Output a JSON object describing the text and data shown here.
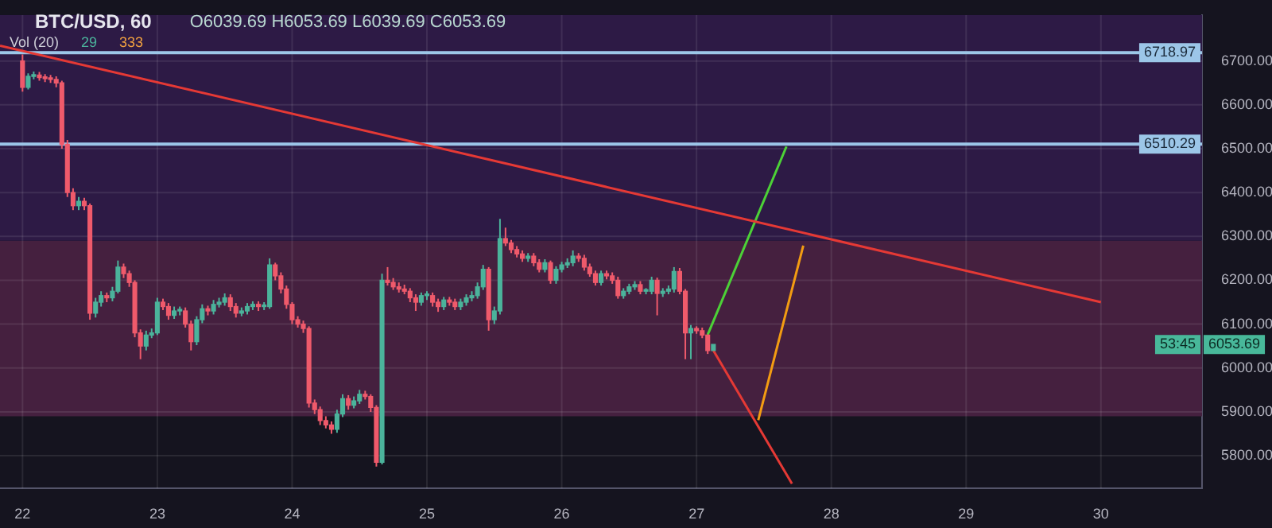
{
  "chart_data": {
    "type": "candlestick",
    "title": "BTC/USD, 60",
    "x": [
      22,
      22.042,
      22.083,
      22.125,
      22.167,
      22.208,
      22.25,
      22.292,
      22.333,
      22.375,
      22.417,
      22.458,
      22.5,
      22.542,
      22.583,
      22.625,
      22.667,
      22.708,
      22.75,
      22.792,
      22.833,
      22.875,
      22.917,
      22.958,
      23,
      23.042,
      23.083,
      23.125,
      23.167,
      23.208,
      23.25,
      23.292,
      23.333,
      23.375,
      23.417,
      23.458,
      23.5,
      23.542,
      23.583,
      23.625,
      23.667,
      23.708,
      23.75,
      23.792,
      23.833,
      23.875,
      23.917,
      23.958,
      24,
      24.042,
      24.083,
      24.125,
      24.167,
      24.208,
      24.25,
      24.292,
      24.333,
      24.375,
      24.417,
      24.458,
      24.5,
      24.542,
      24.583,
      24.625,
      24.667,
      24.708,
      24.75,
      24.792,
      24.833,
      24.875,
      24.917,
      24.958,
      25,
      25.042,
      25.083,
      25.125,
      25.167,
      25.208,
      25.25,
      25.292,
      25.333,
      25.375,
      25.417,
      25.458,
      25.5,
      25.542,
      25.583,
      25.625,
      25.667,
      25.708,
      25.75,
      25.792,
      25.833,
      25.875,
      25.917,
      25.958,
      26,
      26.042,
      26.083,
      26.125,
      26.167,
      26.208,
      26.25,
      26.292,
      26.333,
      26.375,
      26.417,
      26.458,
      26.5,
      26.542,
      26.583,
      26.625,
      26.667,
      26.708,
      26.75,
      26.792,
      26.833,
      26.875,
      26.917,
      26.958,
      27,
      27.042,
      27.083,
      27.125
    ],
    "ohlc": [
      [
        6700,
        6715,
        6630,
        6640
      ],
      [
        6640,
        6672,
        6635,
        6665
      ],
      [
        6665,
        6676,
        6658,
        6668
      ],
      [
        6668,
        6675,
        6655,
        6662
      ],
      [
        6662,
        6670,
        6652,
        6660
      ],
      [
        6660,
        6668,
        6650,
        6658
      ],
      [
        6658,
        6665,
        6640,
        6650
      ],
      [
        6650,
        6655,
        6500,
        6510
      ],
      [
        6510,
        6520,
        6390,
        6400
      ],
      [
        6400,
        6410,
        6360,
        6370
      ],
      [
        6370,
        6390,
        6360,
        6380
      ],
      [
        6380,
        6388,
        6360,
        6370
      ],
      [
        6370,
        6375,
        6110,
        6125
      ],
      [
        6125,
        6160,
        6115,
        6150
      ],
      [
        6150,
        6175,
        6140,
        6165
      ],
      [
        6165,
        6172,
        6150,
        6160
      ],
      [
        6160,
        6185,
        6152,
        6175
      ],
      [
        6175,
        6245,
        6170,
        6230
      ],
      [
        6230,
        6238,
        6205,
        6215
      ],
      [
        6215,
        6222,
        6185,
        6195
      ],
      [
        6195,
        6200,
        6070,
        6080
      ],
      [
        6080,
        6088,
        6020,
        6050
      ],
      [
        6050,
        6085,
        6040,
        6075
      ],
      [
        6075,
        6090,
        6068,
        6080
      ],
      [
        6080,
        6160,
        6075,
        6150
      ],
      [
        6150,
        6158,
        6132,
        6140
      ],
      [
        6140,
        6148,
        6110,
        6120
      ],
      [
        6120,
        6140,
        6112,
        6130
      ],
      [
        6130,
        6140,
        6120,
        6130
      ],
      [
        6130,
        6138,
        6092,
        6100
      ],
      [
        6100,
        6108,
        6040,
        6060
      ],
      [
        6060,
        6118,
        6052,
        6110
      ],
      [
        6110,
        6145,
        6102,
        6135
      ],
      [
        6135,
        6142,
        6120,
        6130
      ],
      [
        6130,
        6155,
        6122,
        6145
      ],
      [
        6145,
        6160,
        6138,
        6150
      ],
      [
        6150,
        6170,
        6142,
        6160
      ],
      [
        6160,
        6168,
        6130,
        6140
      ],
      [
        6140,
        6148,
        6115,
        6125
      ],
      [
        6125,
        6138,
        6118,
        6130
      ],
      [
        6130,
        6148,
        6122,
        6140
      ],
      [
        6140,
        6152,
        6132,
        6145
      ],
      [
        6145,
        6152,
        6130,
        6140
      ],
      [
        6140,
        6150,
        6132,
        6140
      ],
      [
        6140,
        6250,
        6135,
        6235
      ],
      [
        6235,
        6240,
        6200,
        6210
      ],
      [
        6210,
        6218,
        6170,
        6180
      ],
      [
        6180,
        6188,
        6135,
        6145
      ],
      [
        6145,
        6150,
        6100,
        6110
      ],
      [
        6110,
        6118,
        6092,
        6100
      ],
      [
        6100,
        6108,
        6080,
        6090
      ],
      [
        6090,
        6095,
        5910,
        5920
      ],
      [
        5920,
        5928,
        5895,
        5905
      ],
      [
        5905,
        5912,
        5870,
        5880
      ],
      [
        5880,
        5890,
        5862,
        5870
      ],
      [
        5870,
        5878,
        5850,
        5860
      ],
      [
        5860,
        5905,
        5852,
        5895
      ],
      [
        5895,
        5940,
        5888,
        5930
      ],
      [
        5930,
        5938,
        5905,
        5915
      ],
      [
        5915,
        5935,
        5908,
        5925
      ],
      [
        5925,
        5950,
        5918,
        5940
      ],
      [
        5940,
        5948,
        5928,
        5935
      ],
      [
        5935,
        5940,
        5900,
        5910
      ],
      [
        5910,
        5915,
        5775,
        5785
      ],
      [
        5785,
        6215,
        5780,
        6200
      ],
      [
        6200,
        6230,
        6188,
        6195
      ],
      [
        6195,
        6205,
        6178,
        6185
      ],
      [
        6185,
        6195,
        6172,
        6180
      ],
      [
        6180,
        6190,
        6168,
        6175
      ],
      [
        6175,
        6182,
        6150,
        6160
      ],
      [
        6160,
        6168,
        6130,
        6150
      ],
      [
        6150,
        6172,
        6142,
        6165
      ],
      [
        6165,
        6175,
        6155,
        6165
      ],
      [
        6165,
        6172,
        6140,
        6150
      ],
      [
        6150,
        6158,
        6128,
        6140
      ],
      [
        6140,
        6162,
        6132,
        6155
      ],
      [
        6155,
        6162,
        6142,
        6150
      ],
      [
        6150,
        6158,
        6132,
        6140
      ],
      [
        6140,
        6158,
        6132,
        6150
      ],
      [
        6150,
        6168,
        6142,
        6160
      ],
      [
        6160,
        6175,
        6152,
        6165
      ],
      [
        6165,
        6195,
        6158,
        6185
      ],
      [
        6185,
        6235,
        6178,
        6225
      ],
      [
        6225,
        6230,
        6085,
        6110
      ],
      [
        6110,
        6140,
        6100,
        6130
      ],
      [
        6130,
        6340,
        6122,
        6295
      ],
      [
        6295,
        6320,
        6278,
        6285
      ],
      [
        6285,
        6292,
        6262,
        6270
      ],
      [
        6270,
        6278,
        6252,
        6260
      ],
      [
        6260,
        6268,
        6242,
        6250
      ],
      [
        6250,
        6262,
        6242,
        6255
      ],
      [
        6255,
        6262,
        6232,
        6240
      ],
      [
        6240,
        6248,
        6218,
        6225
      ],
      [
        6225,
        6248,
        6218,
        6240
      ],
      [
        6240,
        6245,
        6192,
        6200
      ],
      [
        6200,
        6232,
        6192,
        6225
      ],
      [
        6225,
        6242,
        6218,
        6235
      ],
      [
        6235,
        6250,
        6228,
        6240
      ],
      [
        6240,
        6268,
        6232,
        6255
      ],
      [
        6255,
        6262,
        6242,
        6250
      ],
      [
        6250,
        6258,
        6222,
        6230
      ],
      [
        6230,
        6238,
        6208,
        6215
      ],
      [
        6215,
        6222,
        6188,
        6195
      ],
      [
        6195,
        6222,
        6188,
        6215
      ],
      [
        6215,
        6222,
        6202,
        6210
      ],
      [
        6210,
        6218,
        6192,
        6200
      ],
      [
        6200,
        6208,
        6158,
        6165
      ],
      [
        6165,
        6182,
        6158,
        6175
      ],
      [
        6175,
        6192,
        6168,
        6185
      ],
      [
        6185,
        6198,
        6178,
        6190
      ],
      [
        6190,
        6198,
        6168,
        6175
      ],
      [
        6175,
        6182,
        6168,
        6175
      ],
      [
        6175,
        6208,
        6168,
        6200
      ],
      [
        6200,
        6206,
        6120,
        6170
      ],
      [
        6170,
        6182,
        6162,
        6175
      ],
      [
        6175,
        6188,
        6168,
        6180
      ],
      [
        6180,
        6230,
        6172,
        6220
      ],
      [
        6220,
        6228,
        6168,
        6175
      ],
      [
        6175,
        6180,
        6020,
        6080
      ],
      [
        6080,
        6098,
        6020,
        6090
      ],
      [
        6090,
        6095,
        6078,
        6085
      ],
      [
        6085,
        6092,
        6068,
        6075
      ],
      [
        6075,
        6080,
        6032,
        6039.69
      ],
      [
        6039.69,
        6053.69,
        6039.69,
        6053.69
      ]
    ],
    "series": [
      {
        "type": "line",
        "color": "#e53935",
        "x": [
          21.833,
          30
        ],
        "values": [
          6735,
          6150
        ]
      },
      {
        "type": "line",
        "color": "#4cd137",
        "x": [
          27.083,
          27.667
        ],
        "values": [
          6076,
          6505
        ]
      },
      {
        "type": "line",
        "color": "#e53935",
        "x": [
          27.125,
          27.708
        ],
        "values": [
          6040,
          5736
        ]
      },
      {
        "type": "line",
        "color": "#f39c12",
        "x": [
          27.458,
          27.792
        ],
        "values": [
          5881,
          6279
        ]
      }
    ],
    "xlim": [
      21.833,
      30.75
    ],
    "xticks": [
      22,
      23,
      24,
      25,
      26,
      27,
      28,
      29,
      30
    ],
    "ylim": [
      5725,
      6805
    ],
    "yticks": [
      {
        "value": 5800,
        "label": "5800.00"
      },
      {
        "value": 5900,
        "label": "5900.00"
      },
      {
        "value": 6000,
        "label": "6000.00"
      },
      {
        "value": 6100,
        "label": "6100.00"
      },
      {
        "value": 6200,
        "label": "6200.00"
      },
      {
        "value": 6300,
        "label": "6300.00"
      },
      {
        "value": 6400,
        "label": "6400.00"
      },
      {
        "value": 6500,
        "label": "6500.00"
      },
      {
        "value": 6600,
        "label": "6600.00"
      },
      {
        "value": 6700,
        "label": "6700.00"
      }
    ],
    "ref_lines": [
      {
        "axis": "y",
        "value": 6718.97,
        "label": "6718.97",
        "color": "#9cc6e8"
      },
      {
        "axis": "y",
        "value": 6510.29,
        "label": "6510.29",
        "color": "#9cc6e8"
      }
    ],
    "bands": [
      {
        "axis": "y",
        "from": 5890,
        "to": 6290,
        "color": "#45203f"
      },
      {
        "axis": "y",
        "from": 6290,
        "to": 6805,
        "color": "#2d1a45"
      }
    ],
    "annotations": [
      "O6039.69 H6053.69 L6039.69 C6053.69",
      "Vol (20)",
      "29",
      "333",
      "6053.69",
      "53:45"
    ],
    "grid": true,
    "legend": false
  }
}
